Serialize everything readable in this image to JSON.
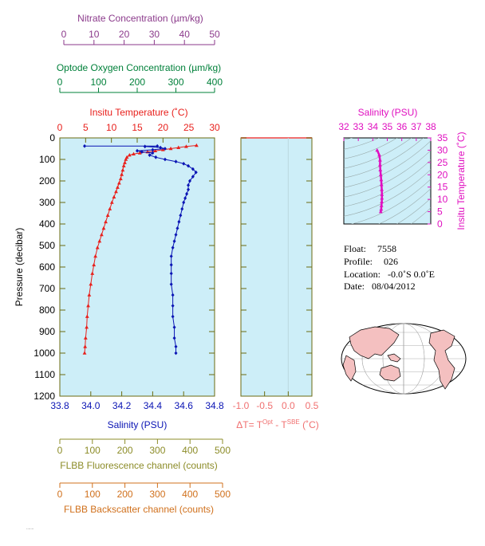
{
  "colors": {
    "nitrate": "#8b3a8b",
    "oxygen": "#00803a",
    "temperature": "#e8201c",
    "salinity": "#0a14b4",
    "pressure": "#000000",
    "delta": "#f07070",
    "profile_salinity": "#e010c0",
    "fluorescence": "#8c8c28",
    "backscatter": "#d0701c",
    "plot_bg": "#cdeef8",
    "frame": "#6b6b10",
    "land": "#f4c0c0"
  },
  "top_axes": {
    "nitrate": {
      "title": "Nitrate Concentration (µm/kg)",
      "ticks": [
        "0",
        "10",
        "20",
        "30",
        "40",
        "50"
      ],
      "range": [
        0,
        50
      ]
    },
    "oxygen": {
      "title": "Optode Oxygen Concentration (µm/kg)",
      "ticks": [
        "0",
        "100",
        "200",
        "300",
        "400"
      ],
      "range": [
        0,
        400
      ]
    },
    "temperature": {
      "title": "Insitu Temperature (˚C)",
      "ticks": [
        "0",
        "5",
        "10",
        "15",
        "20",
        "25",
        "30"
      ],
      "range": [
        0,
        30
      ]
    }
  },
  "bottom_axes": {
    "salinity": {
      "title": "Salinity (PSU)",
      "ticks": [
        "33.8",
        "34.0",
        "34.2",
        "34.4",
        "34.6",
        "34.8"
      ],
      "range": [
        33.8,
        34.8
      ]
    },
    "fluorescence": {
      "title": "FLBB Fluorescence channel (counts)",
      "ticks": [
        "0",
        "100",
        "200",
        "300",
        "400",
        "500"
      ],
      "range": [
        0,
        500
      ]
    },
    "backscatter": {
      "title": "FLBB Backscatter channel (counts)",
      "ticks": [
        "0",
        "100",
        "200",
        "300",
        "400",
        "500"
      ],
      "range": [
        0,
        500
      ]
    }
  },
  "pressure_axis": {
    "title": "Pressure (decibar)",
    "ticks": [
      "0",
      "100",
      "200",
      "300",
      "400",
      "500",
      "600",
      "700",
      "800",
      "900",
      "1000",
      "1100",
      "1200"
    ],
    "range": [
      0,
      1200
    ]
  },
  "delta_panel": {
    "title_prefix": "ΔT= T",
    "title_sup1": "Opt",
    "title_mid": " - T",
    "title_sup2": "SBE",
    "title_suffix": " (˚C)",
    "ticks": [
      "-1.0",
      "-0.5",
      "0.0",
      "0.5"
    ],
    "range": [
      -1.0,
      0.5
    ]
  },
  "ts_panel": {
    "x_title": "Salinity (PSU)",
    "x_ticks": [
      "32",
      "33",
      "34",
      "35",
      "36",
      "37",
      "38"
    ],
    "x_range": [
      32,
      38
    ],
    "y_title": "Insitu Temperature (˚C)",
    "y_ticks": [
      "0",
      "5",
      "10",
      "15",
      "20",
      "25",
      "30",
      "35"
    ],
    "y_range": [
      0,
      35
    ]
  },
  "info": {
    "float_label": "Float:",
    "float_value": "7558",
    "profile_label": "Profile:",
    "profile_value": "026",
    "location_label": "Location:",
    "location_value": "-0.0˚S   0.0˚E",
    "date_label": "Date:",
    "date_value": "08/04/2012"
  },
  "chart_data": {
    "type": "line",
    "y_axis": "pressure (decibar)",
    "y_inverted": true,
    "series": [
      {
        "name": "Insitu Temperature",
        "axis": "temperature",
        "marker": "triangle",
        "points": [
          [
            26.5,
            35
          ],
          [
            24.5,
            40
          ],
          [
            23.0,
            45
          ],
          [
            21.5,
            50
          ],
          [
            20.0,
            55
          ],
          [
            18.5,
            60
          ],
          [
            17.0,
            65
          ],
          [
            15.5,
            70
          ],
          [
            14.3,
            75
          ],
          [
            13.5,
            80
          ],
          [
            13.0,
            90
          ],
          [
            12.8,
            100
          ],
          [
            12.6,
            115
          ],
          [
            12.4,
            130
          ],
          [
            12.2,
            150
          ],
          [
            12.0,
            170
          ],
          [
            11.8,
            190
          ],
          [
            11.5,
            210
          ],
          [
            11.2,
            230
          ],
          [
            10.9,
            250
          ],
          [
            10.5,
            275
          ],
          [
            10.1,
            300
          ],
          [
            9.7,
            330
          ],
          [
            9.3,
            360
          ],
          [
            8.9,
            390
          ],
          [
            8.5,
            420
          ],
          [
            8.1,
            450
          ],
          [
            7.7,
            480
          ],
          [
            7.3,
            510
          ],
          [
            6.9,
            550
          ],
          [
            6.6,
            590
          ],
          [
            6.3,
            630
          ],
          [
            6.0,
            680
          ],
          [
            5.7,
            730
          ],
          [
            5.5,
            780
          ],
          [
            5.3,
            830
          ],
          [
            5.2,
            880
          ],
          [
            5.0,
            930
          ],
          [
            4.9,
            970
          ],
          [
            4.8,
            1000
          ]
        ]
      },
      {
        "name": "Salinity",
        "axis": "salinity",
        "marker": "diamond",
        "points": [
          [
            33.96,
            38
          ],
          [
            34.43,
            38
          ],
          [
            34.35,
            40
          ],
          [
            34.45,
            45
          ],
          [
            34.48,
            50
          ],
          [
            34.4,
            55
          ],
          [
            34.3,
            60
          ],
          [
            34.33,
            65
          ],
          [
            34.4,
            70
          ],
          [
            34.38,
            80
          ],
          [
            34.42,
            90
          ],
          [
            34.48,
            100
          ],
          [
            34.55,
            110
          ],
          [
            34.6,
            120
          ],
          [
            34.63,
            130
          ],
          [
            34.66,
            145
          ],
          [
            34.68,
            160
          ],
          [
            34.66,
            180
          ],
          [
            34.64,
            200
          ],
          [
            34.63,
            220
          ],
          [
            34.63,
            240
          ],
          [
            34.62,
            260
          ],
          [
            34.61,
            280
          ],
          [
            34.6,
            300
          ],
          [
            34.59,
            330
          ],
          [
            34.58,
            360
          ],
          [
            34.57,
            390
          ],
          [
            34.56,
            420
          ],
          [
            34.55,
            450
          ],
          [
            34.54,
            480
          ],
          [
            34.53,
            510
          ],
          [
            34.52,
            550
          ],
          [
            34.52,
            590
          ],
          [
            34.52,
            630
          ],
          [
            34.52,
            680
          ],
          [
            34.53,
            730
          ],
          [
            34.53,
            780
          ],
          [
            34.53,
            830
          ],
          [
            34.54,
            880
          ],
          [
            34.54,
            930
          ],
          [
            34.55,
            970
          ],
          [
            34.55,
            1000
          ]
        ]
      }
    ],
    "ts_points": [
      [
        34.3,
        30.0
      ],
      [
        34.45,
        28.0
      ],
      [
        34.5,
        26.0
      ],
      [
        34.5,
        24.0
      ],
      [
        34.52,
        22.0
      ],
      [
        34.55,
        20.0
      ],
      [
        34.58,
        18.0
      ],
      [
        34.6,
        16.0
      ],
      [
        34.62,
        14.0
      ],
      [
        34.63,
        12.0
      ],
      [
        34.63,
        10.5
      ],
      [
        34.62,
        9.0
      ],
      [
        34.6,
        7.5
      ],
      [
        34.58,
        6.0
      ],
      [
        34.55,
        5.0
      ]
    ]
  }
}
